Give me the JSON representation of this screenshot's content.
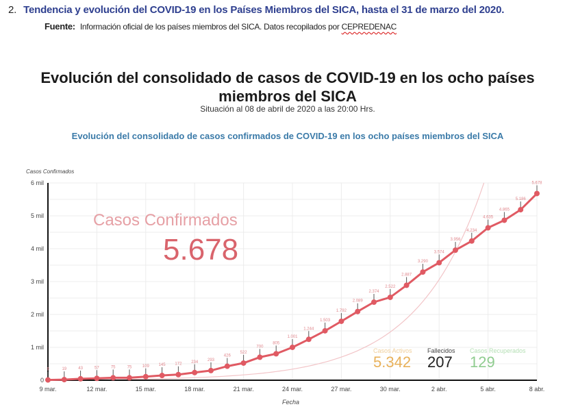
{
  "document": {
    "item_number": "2.",
    "heading": "Tendencia y evolución del COVID-19 en los Países Miembros del SICA, hasta el 31 de marzo del 2020.",
    "source_label": "Fuente:",
    "source_text": "Información oficial de los países miembros del SICA. Datos recopilados por",
    "source_org": "CEPREDENAC"
  },
  "infographic": {
    "title": "Evolución del consolidado de casos de COVID-19 en los ocho países miembros del SICA",
    "subtitle": "Situación al  08 de abril de 2020 a las 20:00 Hrs."
  },
  "summary": {
    "confirmed_label": "Casos Confirmados",
    "confirmed_value": "5.678",
    "active_label": "Casos Activos",
    "active_value": "5.342",
    "deaths_label": "Fallecidos",
    "deaths_value": "207",
    "recovered_label": "Casos Recuperados",
    "recovered_value": "129"
  },
  "colors": {
    "series": "#e05a63",
    "confirmed_label": "#e6a0a5",
    "active": "#e8b15a",
    "deaths": "#222222",
    "recovered": "#8fcc8f",
    "chart_title": "#3a7aa8",
    "heading": "#2e3f8f"
  },
  "chart_data": {
    "type": "line",
    "title": "Evolución del consolidado de casos confirmados de COVID-19 en los ocho países miembros del SICA",
    "xlabel": "Fecha",
    "ylabel": "Casos Confirmados",
    "ylim": [
      0,
      6000
    ],
    "yticks": [
      0,
      1000,
      2000,
      3000,
      4000,
      5000,
      6000
    ],
    "ytick_labels": [
      "0",
      "1 mil",
      "2 mil",
      "3 mil",
      "4 mil",
      "5 mil",
      "6 mil"
    ],
    "xtick_labels": [
      "9 mar.",
      "12 mar.",
      "15 mar.",
      "18 mar.",
      "21 mar.",
      "24 mar.",
      "27 mar.",
      "30 mar.",
      "2 abr.",
      "5 abr.",
      "8 abr."
    ],
    "grid": true,
    "x": [
      "9 mar.",
      "10 mar.",
      "11 mar.",
      "12 mar.",
      "13 mar.",
      "14 mar.",
      "15 mar.",
      "16 mar.",
      "17 mar.",
      "18 mar.",
      "19 mar.",
      "20 mar.",
      "21 mar.",
      "22 mar.",
      "23 mar.",
      "24 mar.",
      "25 mar.",
      "26 mar.",
      "27 mar.",
      "28 mar.",
      "29 mar.",
      "30 mar.",
      "31 mar.",
      "1 abr.",
      "2 abr.",
      "3 abr.",
      "4 abr.",
      "5 abr.",
      "6 abr.",
      "7 abr.",
      "8 abr."
    ],
    "series": [
      {
        "name": "Casos Confirmados",
        "values": [
          9,
          19,
          43,
          57,
          75,
          75,
          109,
          145,
          172,
          234,
          293,
          426,
          522,
          700,
          805,
          1001,
          1244,
          1503,
          1792,
          2089,
          2374,
          2522,
          2887,
          3290,
          3574,
          3956,
          4234,
          4635,
          4865,
          5186,
          5678
        ],
        "labels": [
          "9",
          "19",
          "43",
          "57",
          "75",
          "75",
          "109",
          "145",
          "172",
          "234",
          "293",
          "426",
          "522",
          "700",
          "805",
          "1.001",
          "1.244",
          "1.503",
          "1.792",
          "2.089",
          "2.374",
          "2.522",
          "2.887",
          "3.290",
          "3.574",
          "3.956",
          "4.234",
          "4.635",
          "4.865",
          "5.186",
          "5.678"
        ]
      }
    ],
    "trendline": "exponential (faint pink)"
  }
}
